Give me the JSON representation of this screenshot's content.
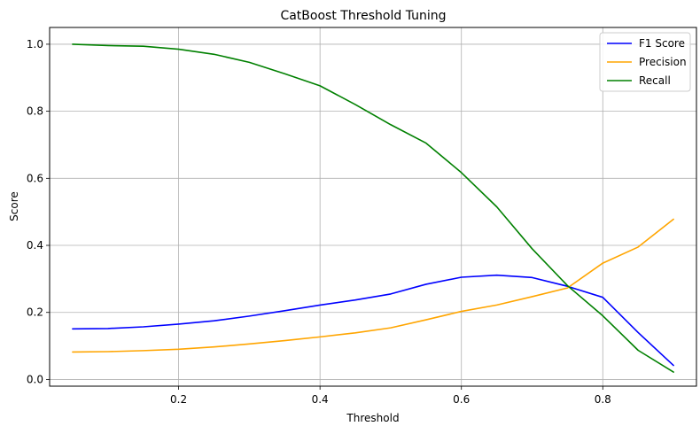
{
  "chart_data": {
    "type": "line",
    "title": "CatBoost Threshold Tuning",
    "xlabel": "Threshold",
    "ylabel": "Score",
    "xlim": [
      0.0175,
      0.9325
    ],
    "ylim": [
      -0.02,
      1.05
    ],
    "xticks": [
      0.2,
      0.4,
      0.6,
      0.8
    ],
    "xtick_labels": [
      "0.2",
      "0.4",
      "0.6",
      "0.8"
    ],
    "yticks": [
      0.0,
      0.2,
      0.4,
      0.6,
      0.8,
      1.0
    ],
    "ytick_labels": [
      "0.0",
      "0.2",
      "0.4",
      "0.6",
      "0.8",
      "1.0"
    ],
    "grid": true,
    "legend_position": "top-right",
    "x": [
      0.05,
      0.1,
      0.15,
      0.2,
      0.25,
      0.3,
      0.35,
      0.4,
      0.45,
      0.5,
      0.55,
      0.6,
      0.65,
      0.7,
      0.75,
      0.8,
      0.85,
      0.9
    ],
    "series": [
      {
        "name": "F1 Score",
        "color": "#0000ff",
        "values": [
          0.151,
          0.152,
          0.157,
          0.165,
          0.175,
          0.189,
          0.205,
          0.222,
          0.237,
          0.255,
          0.284,
          0.305,
          0.311,
          0.304,
          0.278,
          0.245,
          0.14,
          0.042
        ]
      },
      {
        "name": "Precision",
        "color": "#ffa500",
        "values": [
          0.082,
          0.083,
          0.086,
          0.09,
          0.097,
          0.106,
          0.116,
          0.127,
          0.139,
          0.154,
          0.178,
          0.203,
          0.222,
          0.247,
          0.273,
          0.347,
          0.395,
          0.478
        ]
      },
      {
        "name": "Recall",
        "color": "#008000",
        "values": [
          1.0,
          0.996,
          0.994,
          0.985,
          0.97,
          0.946,
          0.912,
          0.876,
          0.82,
          0.76,
          0.705,
          0.617,
          0.515,
          0.39,
          0.28,
          0.19,
          0.087,
          0.022
        ]
      }
    ]
  }
}
